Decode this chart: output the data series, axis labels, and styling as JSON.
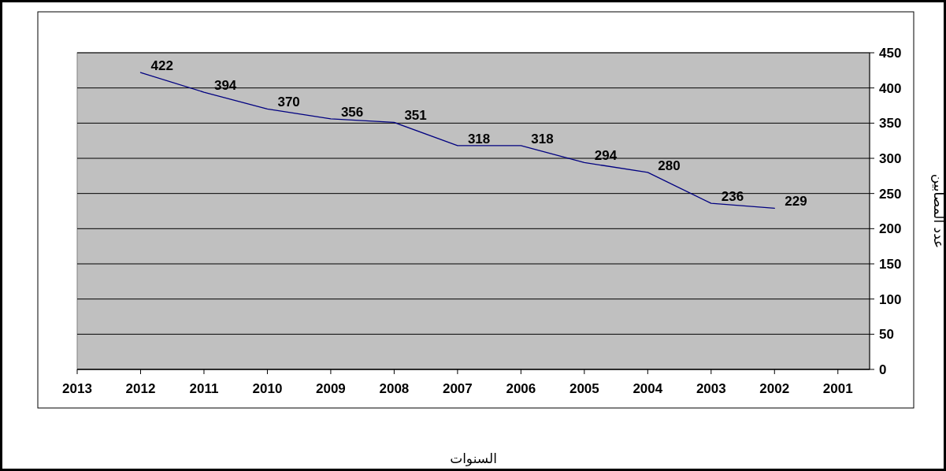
{
  "chart_data": {
    "type": "line",
    "xlabel": "السنوات",
    "ylabel": "عدد المصابين",
    "x": [
      2012,
      2011,
      2010,
      2009,
      2008,
      2007,
      2006,
      2005,
      2004,
      2003,
      2002
    ],
    "series": [
      {
        "color": "#000080",
        "values": [
          422,
          394,
          370,
          356,
          351,
          318,
          318,
          294,
          280,
          236,
          229
        ]
      }
    ],
    "xlim": [
      2013,
      2000.5
    ],
    "xticks": [
      2013,
      2012,
      2011,
      2010,
      2009,
      2008,
      2007,
      2006,
      2005,
      2004,
      2003,
      2002,
      2001
    ],
    "ylim": [
      0,
      450
    ],
    "yticks": [
      0,
      50,
      100,
      150,
      200,
      250,
      300,
      350,
      400,
      450
    ],
    "grid": "y",
    "data_labels": true,
    "marker": "none",
    "line_style": "solid"
  }
}
